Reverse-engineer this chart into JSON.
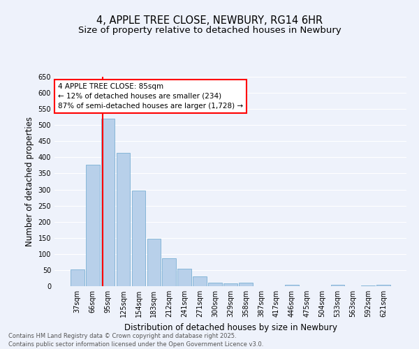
{
  "title": "4, APPLE TREE CLOSE, NEWBURY, RG14 6HR",
  "subtitle": "Size of property relative to detached houses in Newbury",
  "xlabel": "Distribution of detached houses by size in Newbury",
  "ylabel": "Number of detached properties",
  "footer_line1": "Contains HM Land Registry data © Crown copyright and database right 2025.",
  "footer_line2": "Contains public sector information licensed under the Open Government Licence v3.0.",
  "categories": [
    "37sqm",
    "66sqm",
    "95sqm",
    "125sqm",
    "154sqm",
    "183sqm",
    "212sqm",
    "241sqm",
    "271sqm",
    "300sqm",
    "329sqm",
    "358sqm",
    "387sqm",
    "417sqm",
    "446sqm",
    "475sqm",
    "504sqm",
    "533sqm",
    "563sqm",
    "592sqm",
    "621sqm"
  ],
  "values": [
    52,
    378,
    521,
    413,
    297,
    147,
    86,
    55,
    30,
    11,
    8,
    11,
    0,
    0,
    4,
    0,
    0,
    4,
    0,
    3,
    4
  ],
  "bar_color": "#b8d0ea",
  "bar_edge_color": "#7aafd4",
  "ylim": [
    0,
    650
  ],
  "yticks": [
    0,
    50,
    100,
    150,
    200,
    250,
    300,
    350,
    400,
    450,
    500,
    550,
    600,
    650
  ],
  "red_line_x": 1.65,
  "annotation_text": "4 APPLE TREE CLOSE: 85sqm\n← 12% of detached houses are smaller (234)\n87% of semi-detached houses are larger (1,728) →",
  "annotation_box_color": "white",
  "annotation_box_edge_color": "red",
  "red_line_color": "red",
  "background_color": "#eef2fb",
  "grid_color": "white",
  "title_fontsize": 10.5,
  "subtitle_fontsize": 9.5,
  "tick_fontsize": 7,
  "ylabel_fontsize": 8.5,
  "xlabel_fontsize": 8.5,
  "annotation_fontsize": 7.5,
  "footer_fontsize": 6
}
